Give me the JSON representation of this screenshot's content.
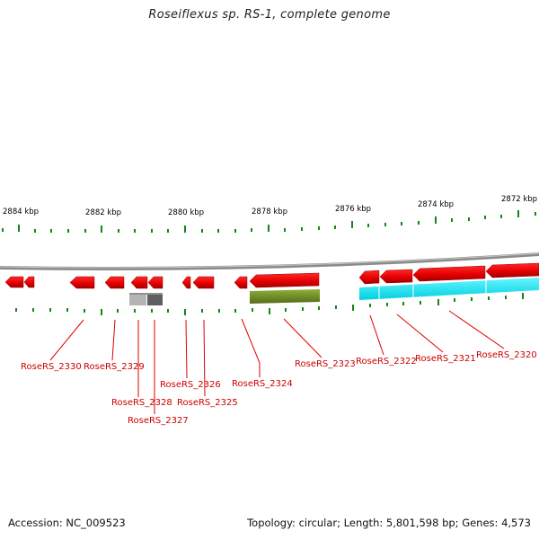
{
  "title": "Roseiflexus sp. RS-1, complete genome",
  "footer": {
    "accession": "Accession: NC_009523",
    "topology": "Topology: circular; Length: 5,801,598 bp; Genes: 4,573"
  },
  "colors": {
    "gene": "#e60000",
    "gene_dark": "#b00000",
    "tick": "#118811",
    "backbone": "#8a8a8a",
    "olive_feature": "#6b8e23",
    "cyan_feature": "#00e5ee",
    "gray_feature": "#b0b0b0",
    "dark_gray_feature": "#606060",
    "label": "#cc0000"
  },
  "scale": {
    "unit": "kbp",
    "tick_labels": [
      "2884 kbp",
      "2882 kbp",
      "2880 kbp",
      "2878 kbp",
      "2876 kbp",
      "2874 kbp",
      "2872 kbp"
    ]
  },
  "genes": [
    "RoseRS_2330",
    "RoseRS_2329",
    "RoseRS_2328",
    "RoseRS_2327",
    "RoseRS_2326",
    "RoseRS_2325",
    "RoseRS_2324",
    "RoseRS_2323",
    "RoseRS_2322",
    "RoseRS_2321",
    "RoseRS_2320"
  ]
}
